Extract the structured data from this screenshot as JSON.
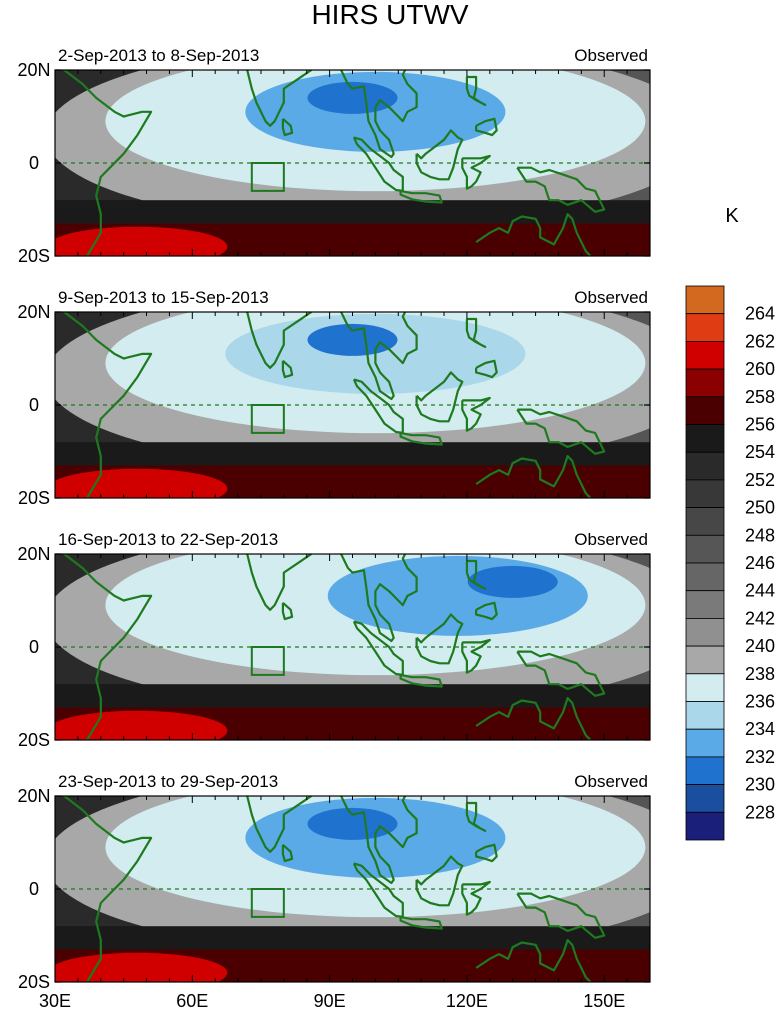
{
  "chart_data": {
    "type": "heatmap",
    "title": "HIRS UTWV",
    "units_label": "K",
    "x_ticks": [
      {
        "label": "30E",
        "value": 30
      },
      {
        "label": "60E",
        "value": 60
      },
      {
        "label": "90E",
        "value": 90
      },
      {
        "label": "120E",
        "value": 120
      },
      {
        "label": "150E",
        "value": 150
      }
    ],
    "y_ticks": [
      {
        "label": "20N",
        "value": 20
      },
      {
        "label": "0",
        "value": 0
      },
      {
        "label": "20S",
        "value": -20
      }
    ],
    "xlim": [
      30,
      160
    ],
    "ylim": [
      -20,
      20
    ],
    "legend": {
      "levels": [
        "264",
        "262",
        "260",
        "258",
        "256",
        "254",
        "252",
        "250",
        "248",
        "246",
        "244",
        "242",
        "240",
        "238",
        "236",
        "234",
        "232",
        "230",
        "228"
      ],
      "colors": [
        "#d2691e",
        "#e03c14",
        "#d00000",
        "#8b0000",
        "#4a0000",
        "#1a1a1a",
        "#2a2a2a",
        "#383838",
        "#474747",
        "#565656",
        "#666666",
        "#7a7a7a",
        "#909090",
        "#a8a8a8",
        "#d2ecf0",
        "#abd7ea",
        "#5aaae8",
        "#2072cf",
        "#1a4fa0",
        "#1a1f7a"
      ]
    },
    "panels": [
      {
        "period": "2-Sep-2013 to 8-Sep-2013",
        "label": "Observed"
      },
      {
        "period": "9-Sep-2013 to 15-Sep-2013",
        "label": "Observed"
      },
      {
        "period": "16-Sep-2013 to 22-Sep-2013",
        "label": "Observed"
      },
      {
        "period": "23-Sep-2013 to 29-Sep-2013",
        "label": "Observed"
      }
    ]
  }
}
